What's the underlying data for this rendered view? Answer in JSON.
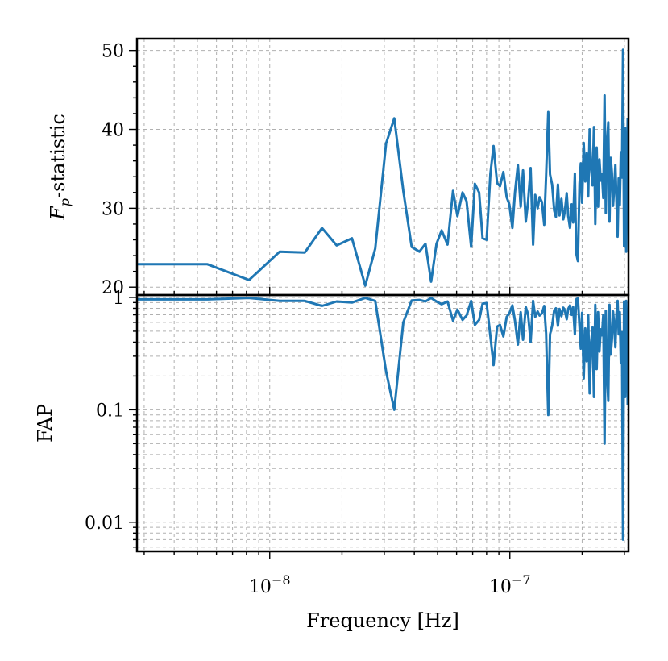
{
  "chart_data": [
    {
      "type": "line",
      "panel": "top",
      "ylabel_main": "F",
      "ylabel_sub": "p",
      "ylabel_rest": "-statistic",
      "yscale": "linear",
      "ylim": [
        19,
        51.5
      ],
      "xlim": [
        2.8e-09,
        3.12e-07
      ],
      "xscale": "log",
      "yticks": [
        20,
        30,
        40,
        50
      ],
      "ytick_labels": [
        "20",
        "30",
        "40",
        "50"
      ],
      "grid": true,
      "series_color": "#1f77b4",
      "x": [
        2.8e-09,
        5.5e-09,
        8.2e-09,
        1.1e-08,
        1.4e-08,
        1.65e-08,
        1.9e-08,
        2.2e-08,
        2.5e-08,
        2.75e-08,
        3.05e-08,
        3.3e-08,
        3.6e-08,
        3.9e-08,
        4.2e-08,
        4.45e-08,
        4.7e-08,
        4.95e-08,
        5.2e-08,
        5.5e-08,
        5.8e-08,
        6.05e-08,
        6.35e-08,
        6.6e-08,
        6.9e-08,
        7.15e-08,
        7.45e-08,
        7.7e-08,
        8e-08,
        8.3e-08,
        8.55e-08,
        8.85e-08,
        9.1e-08,
        9.4e-08,
        9.7e-08,
        9.95e-08,
        1.025e-07,
        1.05e-07,
        1.08e-07,
        1.11e-07,
        1.135e-07,
        1.165e-07,
        1.19e-07,
        1.22e-07,
        1.25e-07,
        1.275e-07,
        1.305e-07,
        1.33e-07,
        1.36e-07,
        1.39e-07,
        1.415e-07,
        1.445e-07,
        1.47e-07,
        1.5e-07,
        1.53e-07,
        1.555e-07,
        1.585e-07,
        1.61e-07,
        1.64e-07,
        1.67e-07,
        1.695e-07,
        1.725e-07,
        1.75e-07,
        1.78e-07,
        1.81e-07,
        1.835e-07,
        1.865e-07,
        1.89e-07,
        1.92e-07,
        1.95e-07,
        1.975e-07,
        2e-07,
        2.03e-07,
        2.06e-07,
        2.09e-07,
        2.12e-07,
        2.15e-07,
        2.18e-07,
        2.21e-07,
        2.24e-07,
        2.27e-07,
        2.3e-07,
        2.33e-07,
        2.36e-07,
        2.39e-07,
        2.42e-07,
        2.45e-07,
        2.48e-07,
        2.51e-07,
        2.54e-07,
        2.57e-07,
        2.6e-07,
        2.63e-07,
        2.66e-07,
        2.69e-07,
        2.72e-07,
        2.75e-07,
        2.78e-07,
        2.81e-07,
        2.84e-07,
        2.87e-07,
        2.9e-07,
        2.93e-07,
        2.96e-07,
        2.99e-07,
        3.02e-07,
        3.05e-07,
        3.08e-07,
        3.11e-07
      ],
      "values": [
        22.9,
        22.9,
        20.9,
        24.5,
        24.4,
        27.5,
        25.3,
        26.2,
        20.2,
        24.9,
        38.2,
        41.4,
        32.2,
        25.1,
        24.5,
        25.5,
        20.7,
        25.5,
        27.2,
        25.4,
        32.2,
        29.0,
        32.0,
        30.9,
        25.1,
        33.1,
        32.0,
        26.2,
        26.0,
        34.4,
        37.9,
        33.2,
        32.8,
        34.6,
        31.4,
        30.5,
        27.5,
        32.0,
        35.5,
        30.2,
        34.8,
        28.3,
        30.8,
        35.1,
        25.4,
        31.7,
        30.0,
        31.4,
        30.8,
        27.9,
        34.1,
        42.2,
        34.3,
        33.0,
        29.7,
        28.9,
        33.0,
        29.1,
        31.2,
        28.6,
        29.6,
        31.9,
        29.0,
        27.5,
        30.5,
        28.2,
        34.4,
        24.3,
        23.3,
        33.1,
        35.7,
        30.7,
        38.3,
        33.4,
        37.0,
        31.5,
        40.0,
        35.0,
        32.9,
        40.3,
        28.0,
        37.7,
        30.2,
        36.2,
        33.5,
        34.3,
        31.3,
        44.3,
        29.4,
        38.4,
        40.9,
        28.3,
        36.4,
        34.5,
        30.3,
        32.5,
        35.5,
        31.0,
        26.4,
        33.8,
        30.4,
        37.1,
        33.9,
        50.1,
        25.2,
        40.2,
        24.5,
        33.5,
        41.4
      ]
    },
    {
      "type": "line",
      "panel": "bottom",
      "ylabel": "FAP",
      "yscale": "log",
      "ylim": [
        0.0055,
        1.05
      ],
      "xlim": [
        2.8e-09,
        3.12e-07
      ],
      "xscale": "log",
      "yticks": [
        0.01,
        0.1,
        1
      ],
      "ytick_labels": [
        "0.01",
        "0.1",
        "1"
      ],
      "xticks": [
        1e-08,
        1e-07
      ],
      "xtick_base": "10",
      "xtick_exponents": [
        "−8",
        "−7"
      ],
      "xlabel": "Frequency [Hz]",
      "grid": true,
      "series_color": "#1f77b4",
      "x": [
        2.8e-09,
        5.5e-09,
        8.2e-09,
        1.1e-08,
        1.4e-08,
        1.65e-08,
        1.9e-08,
        2.2e-08,
        2.5e-08,
        2.75e-08,
        3.05e-08,
        3.3e-08,
        3.6e-08,
        3.9e-08,
        4.2e-08,
        4.45e-08,
        4.7e-08,
        4.95e-08,
        5.2e-08,
        5.5e-08,
        5.8e-08,
        6.05e-08,
        6.35e-08,
        6.6e-08,
        6.9e-08,
        7.15e-08,
        7.45e-08,
        7.7e-08,
        8e-08,
        8.3e-08,
        8.55e-08,
        8.85e-08,
        9.1e-08,
        9.4e-08,
        9.7e-08,
        9.95e-08,
        1.025e-07,
        1.05e-07,
        1.08e-07,
        1.11e-07,
        1.135e-07,
        1.165e-07,
        1.19e-07,
        1.22e-07,
        1.25e-07,
        1.275e-07,
        1.305e-07,
        1.33e-07,
        1.36e-07,
        1.39e-07,
        1.415e-07,
        1.445e-07,
        1.47e-07,
        1.5e-07,
        1.53e-07,
        1.555e-07,
        1.585e-07,
        1.61e-07,
        1.64e-07,
        1.67e-07,
        1.695e-07,
        1.725e-07,
        1.75e-07,
        1.78e-07,
        1.81e-07,
        1.835e-07,
        1.865e-07,
        1.89e-07,
        1.92e-07,
        1.95e-07,
        1.975e-07,
        2e-07,
        2.03e-07,
        2.06e-07,
        2.09e-07,
        2.12e-07,
        2.15e-07,
        2.18e-07,
        2.21e-07,
        2.24e-07,
        2.27e-07,
        2.3e-07,
        2.33e-07,
        2.36e-07,
        2.39e-07,
        2.42e-07,
        2.45e-07,
        2.48e-07,
        2.51e-07,
        2.54e-07,
        2.57e-07,
        2.6e-07,
        2.63e-07,
        2.66e-07,
        2.69e-07,
        2.72e-07,
        2.75e-07,
        2.78e-07,
        2.81e-07,
        2.84e-07,
        2.87e-07,
        2.9e-07,
        2.93e-07,
        2.96e-07,
        2.99e-07,
        3.02e-07,
        3.05e-07,
        3.08e-07,
        3.11e-07
      ],
      "values": [
        0.96,
        0.96,
        0.99,
        0.93,
        0.93,
        0.84,
        0.92,
        0.9,
        0.99,
        0.93,
        0.22,
        0.1,
        0.6,
        0.94,
        0.95,
        0.92,
        0.99,
        0.92,
        0.87,
        0.92,
        0.62,
        0.78,
        0.63,
        0.69,
        0.93,
        0.57,
        0.63,
        0.88,
        0.89,
        0.45,
        0.25,
        0.55,
        0.57,
        0.45,
        0.67,
        0.72,
        0.85,
        0.62,
        0.38,
        0.74,
        0.42,
        0.82,
        0.71,
        0.4,
        0.93,
        0.67,
        0.75,
        0.69,
        0.72,
        0.84,
        0.48,
        0.09,
        0.47,
        0.56,
        0.77,
        0.8,
        0.56,
        0.79,
        0.68,
        0.81,
        0.77,
        0.64,
        0.79,
        0.85,
        0.7,
        0.82,
        0.47,
        0.96,
        0.98,
        0.55,
        0.35,
        0.73,
        0.19,
        0.53,
        0.27,
        0.69,
        0.14,
        0.4,
        0.54,
        0.13,
        0.86,
        0.23,
        0.74,
        0.33,
        0.52,
        0.46,
        0.7,
        0.05,
        0.76,
        0.2,
        0.12,
        0.86,
        0.31,
        0.42,
        0.75,
        0.58,
        0.36,
        0.71,
        0.93,
        0.47,
        0.74,
        0.26,
        0.49,
        0.007,
        0.92,
        0.13,
        0.93,
        0.52,
        0.11
      ]
    }
  ]
}
